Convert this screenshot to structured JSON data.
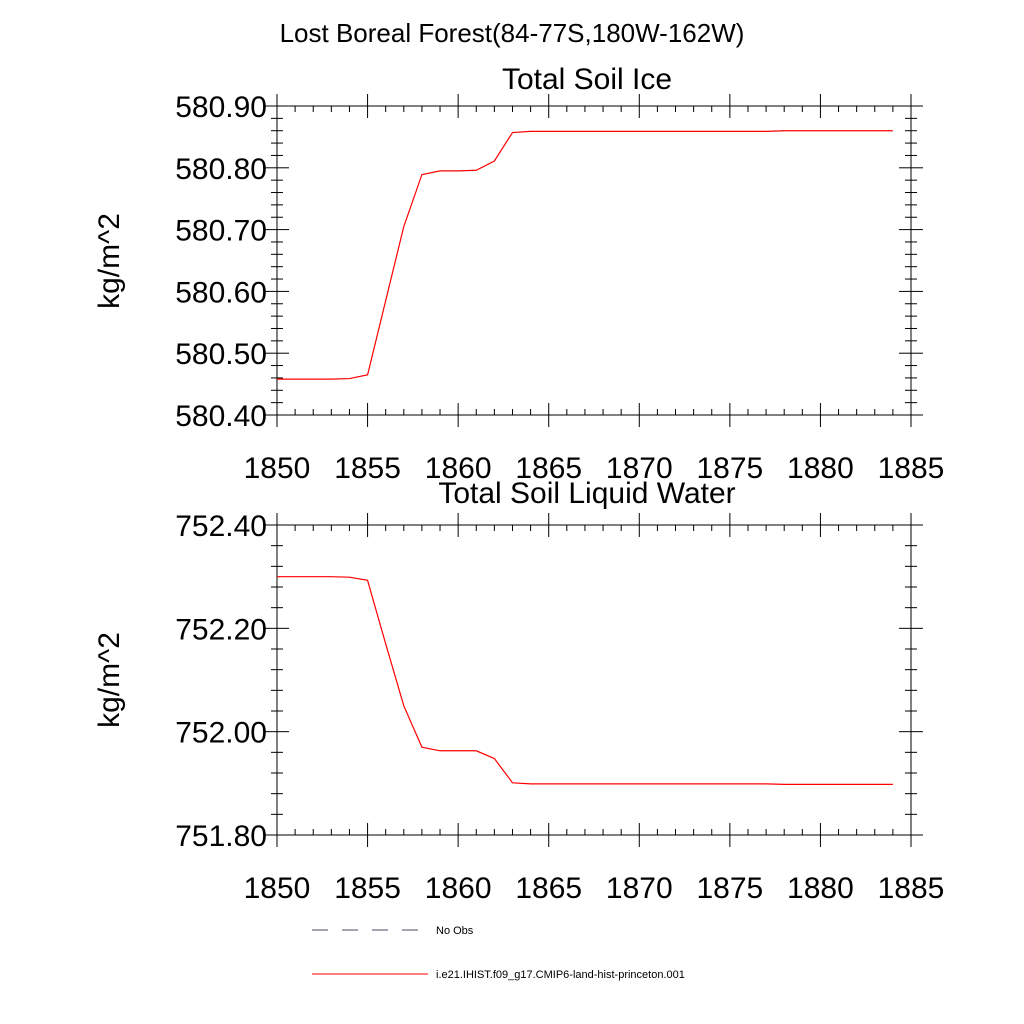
{
  "page_title": "Lost Boreal Forest(84-77S,180W-162W)",
  "chart_data": [
    {
      "type": "line",
      "title": "Total Soil Ice",
      "xlabel": "",
      "ylabel": "kg/m^2",
      "xlim": [
        1850,
        1885
      ],
      "ylim": [
        580.4,
        580.9
      ],
      "grid": false,
      "x_ticks": [
        1850,
        1855,
        1860,
        1865,
        1870,
        1875,
        1880,
        1885
      ],
      "x_tick_labels": [
        "1850",
        "1855",
        "1860",
        "1865",
        "1870",
        "1875",
        "1880",
        "1885"
      ],
      "y_ticks": [
        580.4,
        580.5,
        580.6,
        580.7,
        580.8,
        580.9
      ],
      "y_tick_labels": [
        "580.40",
        "580.50",
        "580.60",
        "580.70",
        "580.80",
        "580.90"
      ],
      "series": [
        {
          "name": "i.e21.IHIST.f09_g17.CMIP6-land-hist-princeton.001",
          "color": "#ff0000",
          "x": [
            1850,
            1851,
            1852,
            1853,
            1854,
            1855,
            1856,
            1857,
            1858,
            1859,
            1860,
            1861,
            1862,
            1863,
            1864,
            1865,
            1866,
            1867,
            1868,
            1869,
            1870,
            1871,
            1872,
            1873,
            1874,
            1875,
            1876,
            1877,
            1878,
            1879,
            1880,
            1881,
            1882,
            1883,
            1884
          ],
          "y": [
            580.458,
            580.458,
            580.458,
            580.458,
            580.459,
            580.465,
            580.585,
            580.705,
            580.789,
            580.795,
            580.795,
            580.796,
            580.811,
            580.857,
            580.859,
            580.859,
            580.859,
            580.859,
            580.859,
            580.859,
            580.859,
            580.859,
            580.859,
            580.859,
            580.859,
            580.859,
            580.859,
            580.859,
            580.86,
            580.86,
            580.86,
            580.86,
            580.86,
            580.86,
            580.86
          ]
        }
      ]
    },
    {
      "type": "line",
      "title": "Total Soil Liquid Water",
      "xlabel": "",
      "ylabel": "kg/m^2",
      "xlim": [
        1850,
        1885
      ],
      "ylim": [
        751.8,
        752.4
      ],
      "grid": false,
      "x_ticks": [
        1850,
        1855,
        1860,
        1865,
        1870,
        1875,
        1880,
        1885
      ],
      "x_tick_labels": [
        "1850",
        "1855",
        "1860",
        "1865",
        "1870",
        "1875",
        "1880",
        "1885"
      ],
      "y_ticks": [
        751.8,
        752.0,
        752.2,
        752.4
      ],
      "y_tick_labels": [
        "751.80",
        "752.00",
        "752.20",
        "752.40"
      ],
      "series": [
        {
          "name": "i.e21.IHIST.f09_g17.CMIP6-land-hist-princeton.001",
          "color": "#ff0000",
          "x": [
            1850,
            1851,
            1852,
            1853,
            1854,
            1855,
            1856,
            1857,
            1858,
            1859,
            1860,
            1861,
            1862,
            1863,
            1864,
            1865,
            1866,
            1867,
            1868,
            1869,
            1870,
            1871,
            1872,
            1873,
            1874,
            1875,
            1876,
            1877,
            1878,
            1879,
            1880,
            1881,
            1882,
            1883,
            1884
          ],
          "y": [
            752.3,
            752.3,
            752.3,
            752.3,
            752.299,
            752.293,
            752.17,
            752.05,
            751.97,
            751.963,
            751.963,
            751.963,
            751.948,
            751.901,
            751.899,
            751.899,
            751.899,
            751.899,
            751.899,
            751.899,
            751.899,
            751.899,
            751.899,
            751.899,
            751.899,
            751.899,
            751.899,
            751.899,
            751.898,
            751.898,
            751.898,
            751.898,
            751.898,
            751.898,
            751.898
          ]
        }
      ]
    }
  ],
  "legend": {
    "placement": "bottom",
    "items": [
      {
        "label": "No Obs",
        "color": "#4a4a6a",
        "style": "dashed"
      },
      {
        "label": "i.e21.IHIST.f09_g17.CMIP6-land-hist-princeton.001",
        "color": "#ff0000",
        "style": "solid"
      }
    ]
  }
}
